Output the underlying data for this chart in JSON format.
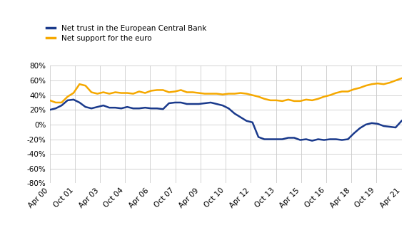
{
  "legend": [
    "Net trust in the European Central Bank",
    "Net support for the euro"
  ],
  "ecb_color": "#1a3a8c",
  "euro_color": "#f5a800",
  "ylim": [
    -80,
    80
  ],
  "yticks": [
    -80,
    -60,
    -40,
    -20,
    0,
    20,
    40,
    60,
    80
  ],
  "background_color": "#ffffff",
  "grid_color": "#cccccc",
  "x_labels": [
    "Apr 00",
    "Oct 01",
    "Apr 03",
    "Oct 04",
    "Apr 06",
    "Oct 07",
    "Apr 09",
    "Oct 10",
    "Apr 12",
    "Oct 13",
    "Apr 15",
    "Oct 16",
    "Apr 18",
    "Oct 19",
    "Apr 21"
  ],
  "ecb_trust": [
    20,
    22,
    26,
    33,
    34,
    30,
    24,
    22,
    24,
    26,
    23,
    23,
    22,
    24,
    22,
    22,
    23,
    22,
    22,
    21,
    29,
    30,
    30,
    28,
    28,
    28,
    29,
    30,
    28,
    26,
    22,
    15,
    10,
    5,
    3,
    -17,
    -20,
    -20,
    -20,
    -20,
    -18,
    -18,
    -21,
    -20,
    -22,
    -20,
    -21,
    -20,
    -20,
    -21,
    -20,
    -12,
    -5,
    0,
    2,
    1,
    -2,
    -3,
    -4,
    5
  ],
  "euro_support": [
    33,
    30,
    30,
    38,
    43,
    55,
    53,
    44,
    42,
    44,
    42,
    44,
    43,
    43,
    42,
    45,
    43,
    46,
    47,
    47,
    44,
    45,
    47,
    44,
    44,
    43,
    42,
    42,
    42,
    41,
    42,
    42,
    43,
    42,
    40,
    38,
    35,
    33,
    33,
    32,
    34,
    32,
    32,
    34,
    33,
    35,
    38,
    40,
    43,
    45,
    45,
    48,
    50,
    53,
    55,
    56,
    55,
    57,
    60,
    63
  ],
  "n_points": 60
}
